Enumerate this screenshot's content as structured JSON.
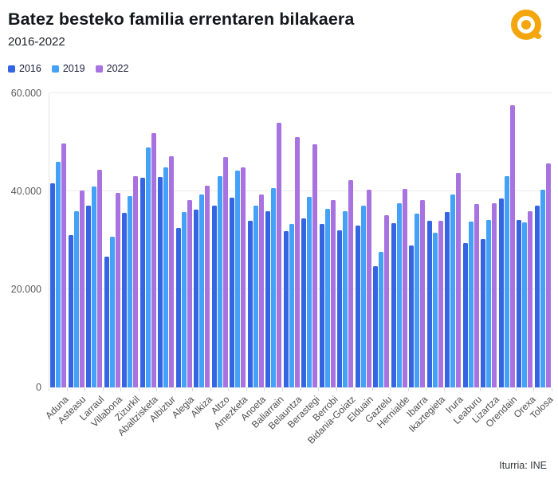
{
  "header": {
    "title": "Batez besteko familia errentaren bilakaera",
    "subtitle": "2016-2022",
    "logo": "ataria-logo",
    "logo_color": "#f3a60e"
  },
  "footer": {
    "source": "Iturria: INE"
  },
  "chart_data": {
    "type": "bar",
    "title": "Batez besteko familia errentaren bilakaera",
    "subtitle": "2016-2022",
    "xlabel": "",
    "ylabel": "",
    "ylim": [
      0,
      60000
    ],
    "yticks": [
      0,
      20000,
      40000,
      60000
    ],
    "ytick_labels": [
      "0",
      "20.000",
      "40.000",
      "60.000"
    ],
    "grid": true,
    "legend_position": "top-left",
    "categories": [
      "Aduna",
      "Asteasu",
      "Larraul",
      "Villabona",
      "Zizurkil",
      "Abaltzisketa",
      "Albiztur",
      "Alegia",
      "Alkiza",
      "Altzo",
      "Amezketa",
      "Anoeta",
      "Baliarrain",
      "Belauntza",
      "Berastegi",
      "Berrobi",
      "Bidania-Goiatz",
      "Elduain",
      "Gaztelu",
      "Hernialde",
      "Ibarra",
      "Ikaztegieta",
      "Irura",
      "Leaburu",
      "Lizartza",
      "Orendain",
      "Orexa",
      "Tolosa"
    ],
    "series": [
      {
        "name": "2016",
        "color": "#3565e2",
        "values": [
          41600,
          31100,
          37000,
          26700,
          35600,
          42700,
          42900,
          32600,
          36300,
          37100,
          38700,
          34000,
          36000,
          31800,
          34500,
          33300,
          32000,
          33000,
          24700,
          33500,
          28900,
          34000,
          35700,
          29400,
          30200,
          38600,
          34200,
          37100
        ]
      },
      {
        "name": "2019",
        "color": "#43a1f7",
        "values": [
          46000,
          35900,
          41000,
          30700,
          39000,
          49000,
          44900,
          35700,
          39300,
          43100,
          44200,
          37000,
          40600,
          33400,
          38900,
          36400,
          35900,
          37000,
          27600,
          37500,
          35400,
          31500,
          39300,
          33900,
          34200,
          43100,
          33700,
          40300
        ]
      },
      {
        "name": "2022",
        "color": "#a873e0",
        "values": [
          49700,
          40200,
          44400,
          39600,
          43100,
          51900,
          47100,
          38200,
          41200,
          47000,
          44900,
          39400,
          54000,
          51100,
          49600,
          38200,
          42200,
          40300,
          35100,
          40500,
          38200,
          34000,
          43700,
          37400,
          37500,
          57500,
          35900,
          45700
        ]
      }
    ]
  }
}
